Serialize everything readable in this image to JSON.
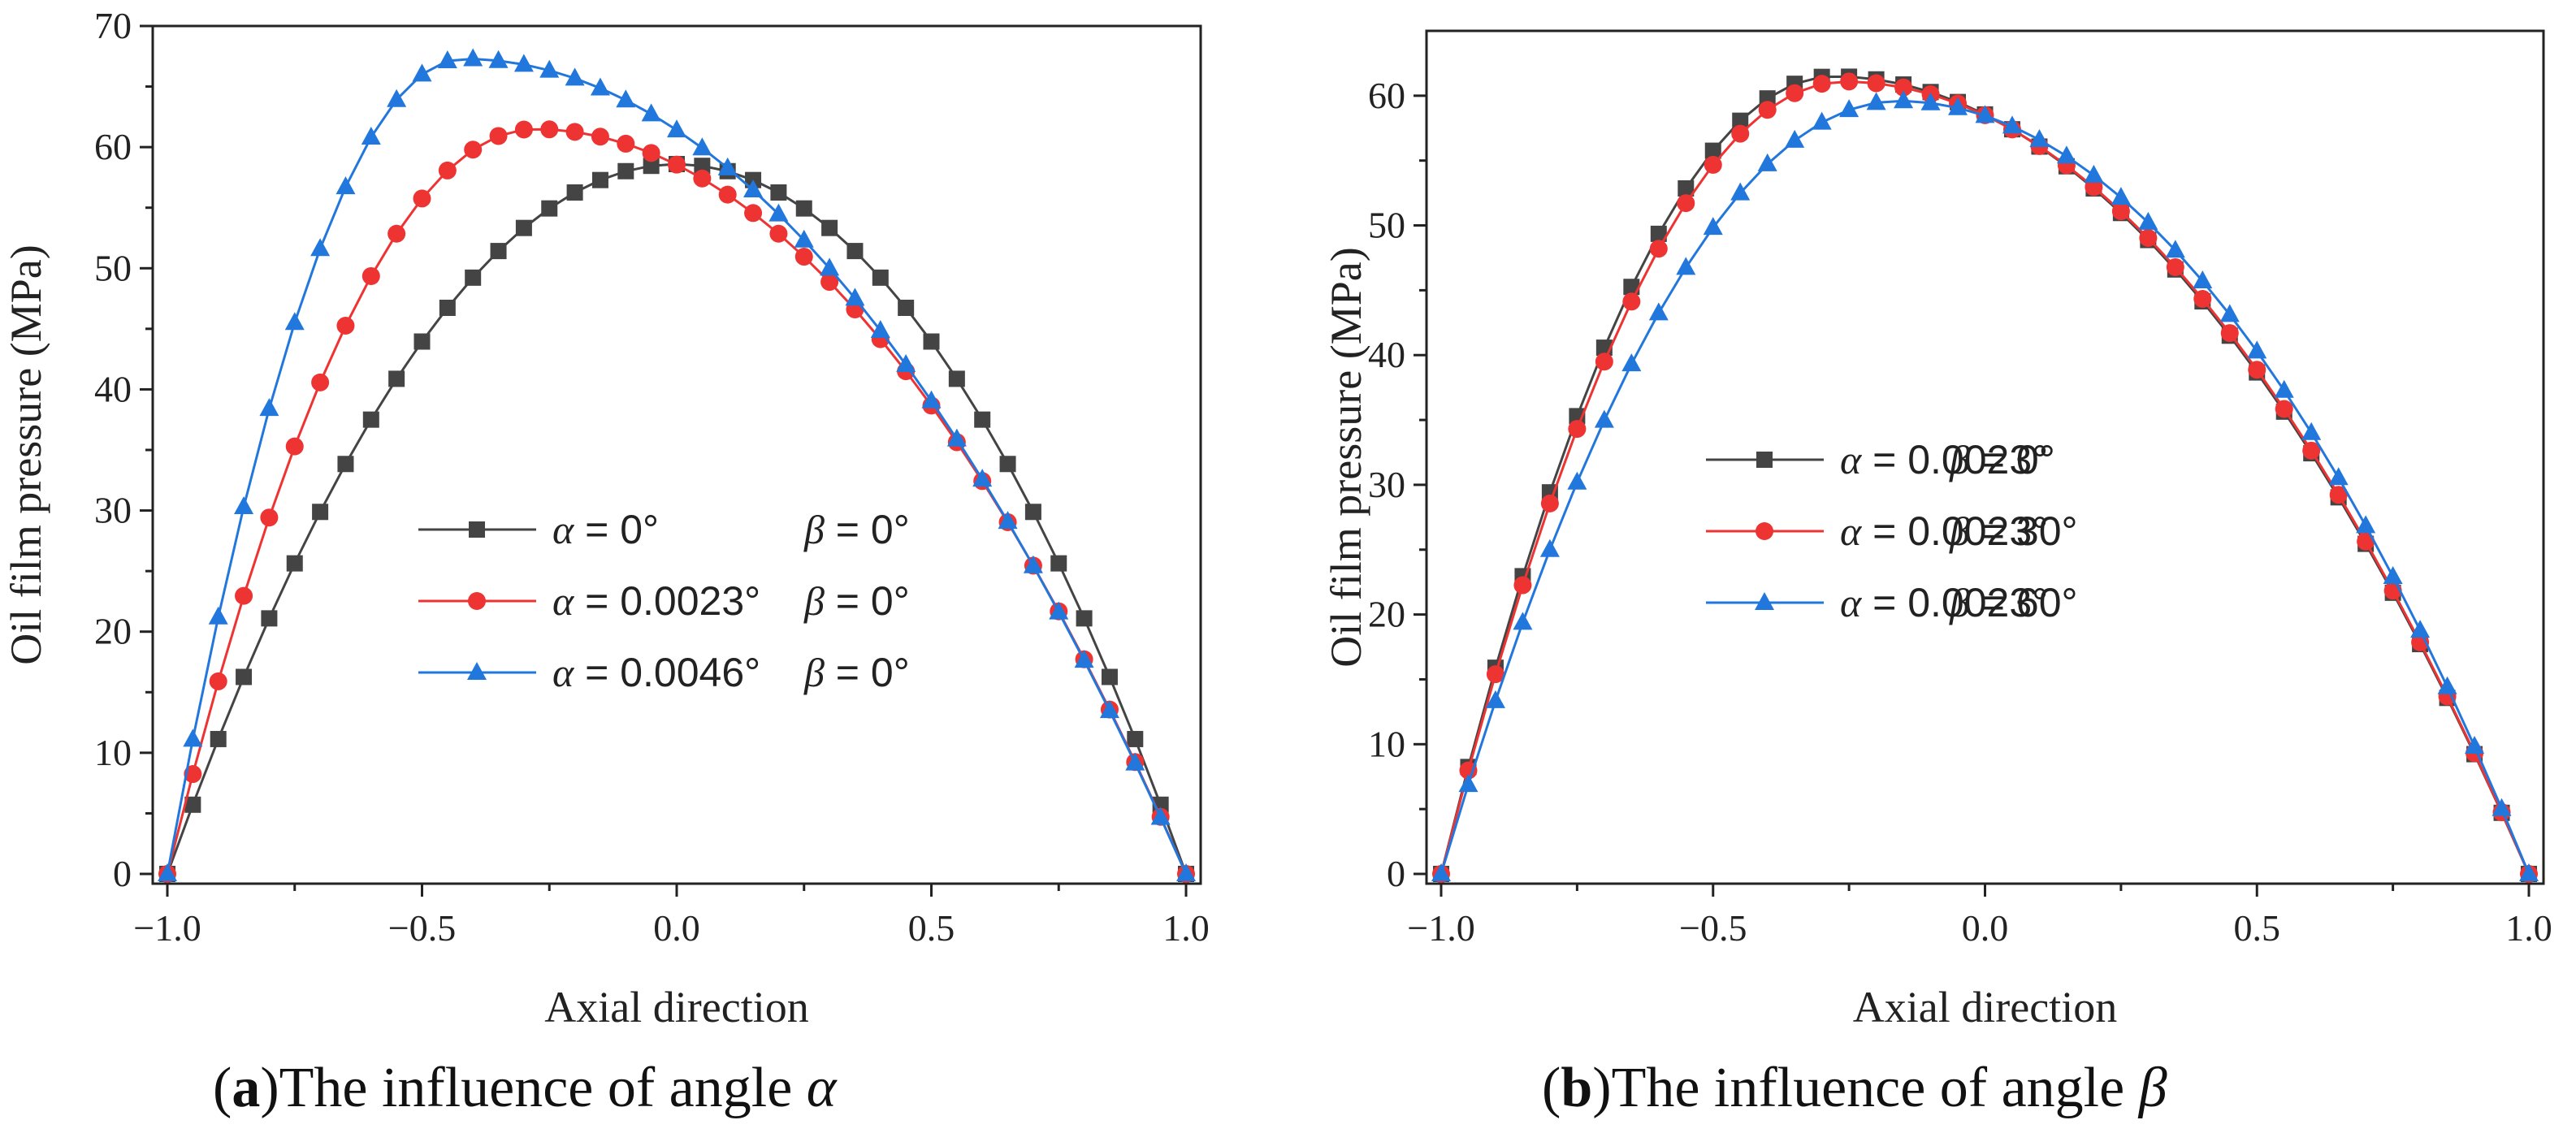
{
  "chart_data": [
    {
      "type": "line",
      "ylabel": "Oil film pressure (MPa)",
      "xlabel": "Axial direction",
      "xlim": [
        -1.0,
        1.0
      ],
      "ylim": [
        0,
        70
      ],
      "xticks": [
        "−1.0",
        "−0.5",
        "0.0",
        "0.5",
        "1.0"
      ],
      "yticks": [
        "0",
        "10",
        "20",
        "30",
        "40",
        "50",
        "60",
        "70"
      ],
      "legend_position": "center",
      "series": [
        {
          "name_alpha": "α = 0°",
          "name_beta": "β = 0°",
          "color": "#444444",
          "marker": "square",
          "peak_x": 0.0,
          "peak_y": 58.6
        },
        {
          "name_alpha": "α = 0.0023°",
          "name_beta": "β = 0°",
          "color": "#ee3333",
          "marker": "circle",
          "peak_x": -0.28,
          "peak_y": 61.5
        },
        {
          "name_alpha": "α = 0.0046°",
          "name_beta": "β = 0°",
          "color": "#2277dd",
          "marker": "triangle",
          "peak_x": -0.42,
          "peak_y": 67.3
        }
      ]
    },
    {
      "type": "line",
      "ylabel": "Oil film pressure (MPa)",
      "xlabel": "Axial direction",
      "xlim": [
        -1.0,
        1.0
      ],
      "ylim": [
        0,
        65
      ],
      "xticks": [
        "−1.0",
        "−0.5",
        "0.0",
        "0.5",
        "1.0"
      ],
      "yticks": [
        "0",
        "10",
        "20",
        "30",
        "40",
        "50",
        "60"
      ],
      "legend_position": "center-left",
      "series": [
        {
          "name_alpha": "α = 0.0023°",
          "name_beta": "β = 0°",
          "color": "#444444",
          "marker": "square",
          "peak_x": -0.28,
          "peak_y": 61.5
        },
        {
          "name_alpha": "α = 0.0023°",
          "name_beta": "β = 30°",
          "color": "#ee3333",
          "marker": "circle",
          "peak_x": -0.26,
          "peak_y": 61.1
        },
        {
          "name_alpha": "α = 0.0023°",
          "name_beta": "β = 60°",
          "color": "#2277dd",
          "marker": "triangle",
          "peak_x": -0.16,
          "peak_y": 59.6
        }
      ]
    }
  ],
  "captions": {
    "a_label": "a",
    "a_text": "The influence of angle ",
    "a_symbol": "α",
    "b_label": "b",
    "b_text": "The influence of angle ",
    "b_symbol": "β"
  }
}
